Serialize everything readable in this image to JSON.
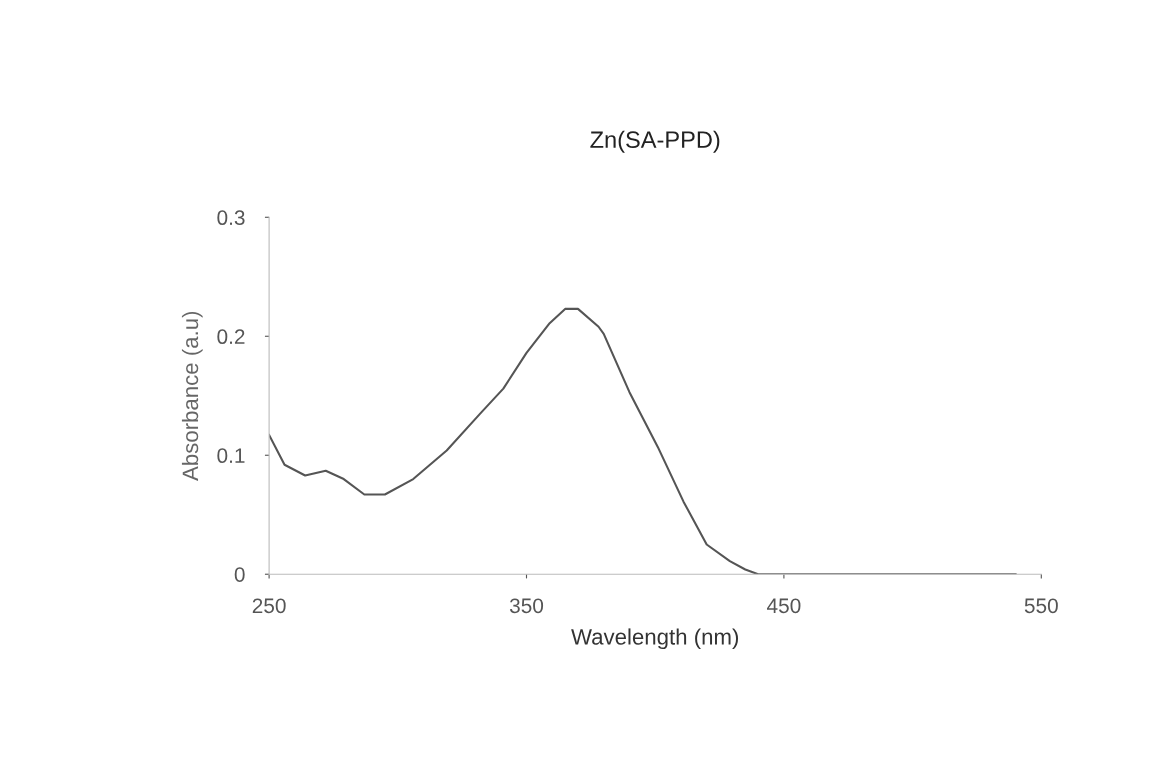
{
  "chart_data": {
    "type": "line",
    "title": "Zn(SA-PPD)",
    "xlabel": "Wavelength (nm)",
    "ylabel": "Absorbance (a.u)",
    "x": [
      250,
      256,
      264,
      272,
      279,
      287,
      295,
      306,
      319,
      332,
      341,
      350,
      359,
      365,
      370,
      378,
      380,
      390,
      401,
      411,
      420,
      429,
      435,
      440,
      460,
      500,
      540
    ],
    "series": [
      {
        "color": "#555555",
        "values": [
          0.117,
          0.092,
          0.083,
          0.087,
          0.08,
          0.067,
          0.067,
          0.08,
          0.104,
          0.135,
          0.156,
          0.186,
          0.211,
          0.223,
          0.223,
          0.208,
          0.202,
          0.153,
          0.107,
          0.061,
          0.025,
          0.011,
          0.004,
          0,
          0,
          0,
          0
        ]
      }
    ],
    "xlim": [
      250,
      550
    ],
    "xticks": [
      250,
      350,
      450,
      550
    ],
    "ylim": [
      0,
      0.3
    ],
    "yticks": [
      0,
      0.1,
      0.2,
      0.3
    ],
    "grid": false
  }
}
